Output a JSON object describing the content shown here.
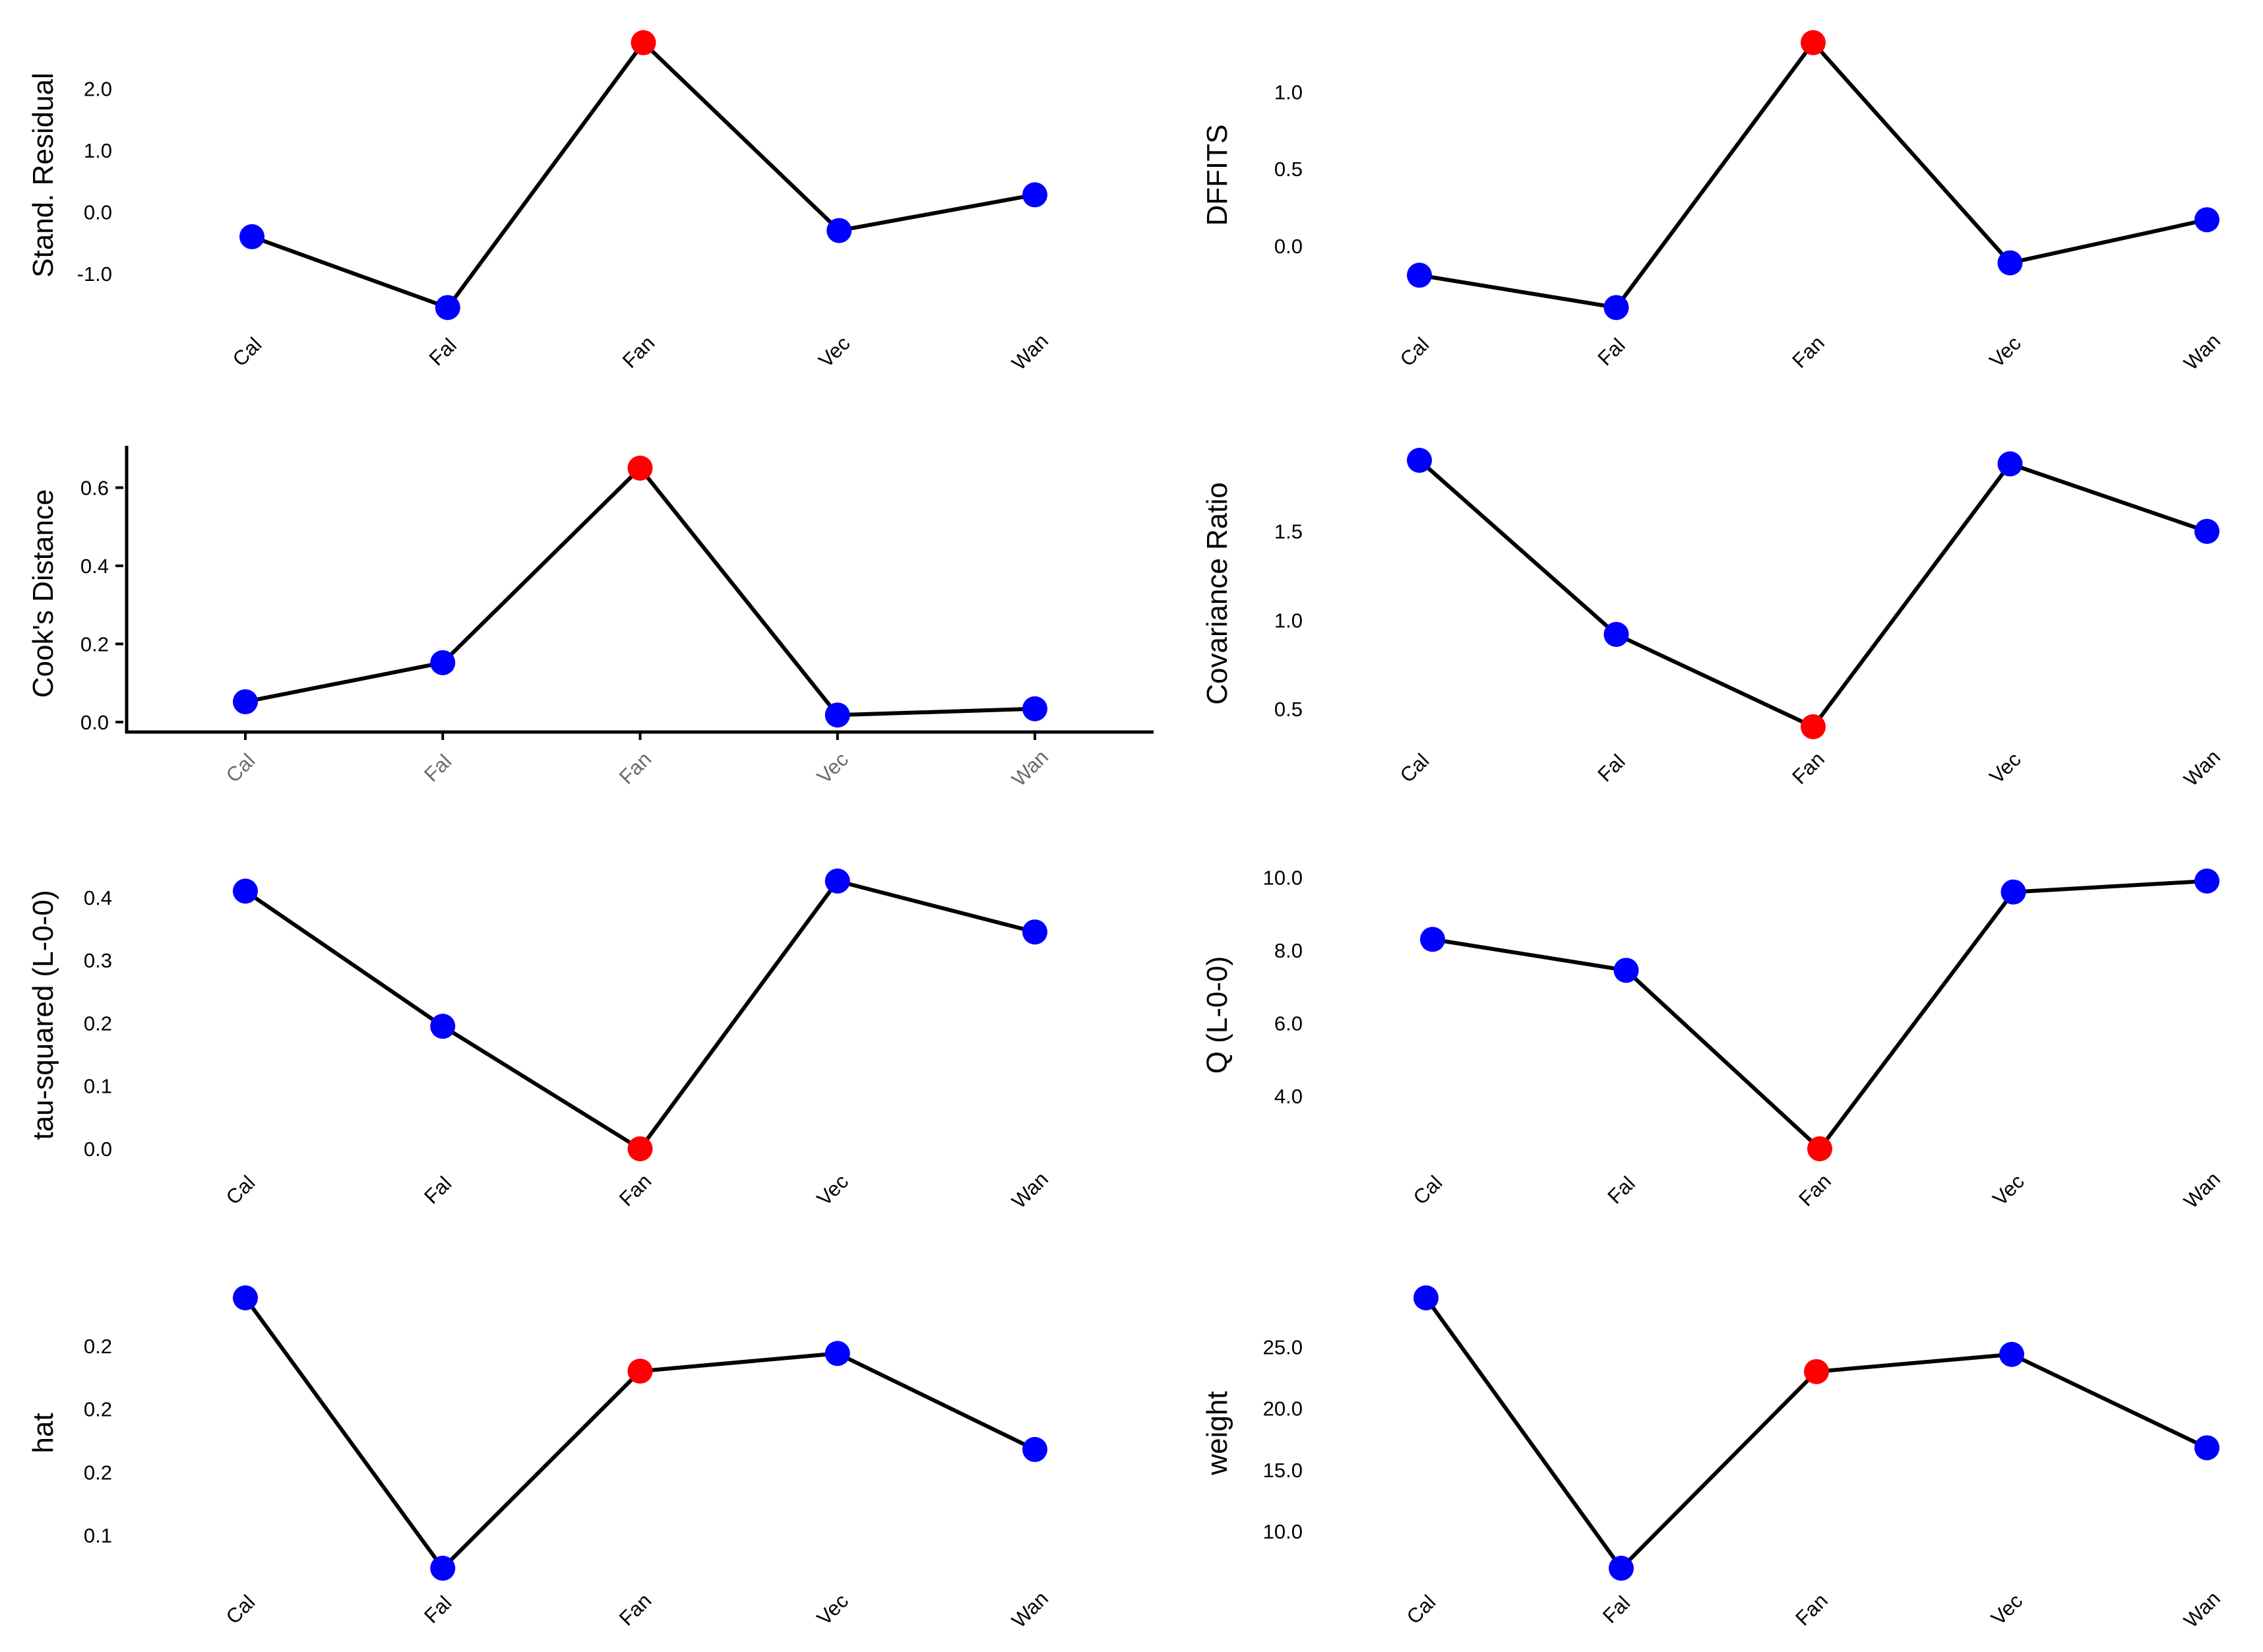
{
  "colors": {
    "normal_point": "#0000ff",
    "highlight_point": "#ff0000",
    "line": "#000000"
  },
  "chart_data": [
    {
      "type": "line",
      "ylabel": "Stand. Residual",
      "categories": [
        "Cal",
        "Fal",
        "Fan",
        "Vec",
        "Wan"
      ],
      "values": [
        -0.4,
        -1.55,
        2.75,
        -0.3,
        0.28
      ],
      "highlight": [
        false,
        false,
        true,
        false,
        false
      ],
      "yticks": [
        -1.0,
        0.0,
        1.0,
        2.0
      ],
      "ytick_labels": [
        "-1.0",
        "0.0",
        "1.0",
        "2.0"
      ],
      "ylim": [
        -1.6,
        2.8
      ],
      "axis_lines": false
    },
    {
      "type": "line",
      "ylabel": "DFFITS",
      "categories": [
        "Cal",
        "Fal",
        "Fan",
        "Vec",
        "Wan"
      ],
      "values": [
        -0.19,
        -0.4,
        1.32,
        -0.11,
        0.17
      ],
      "highlight": [
        false,
        false,
        true,
        false,
        false
      ],
      "yticks": [
        0.0,
        0.5,
        1.0
      ],
      "ytick_labels": [
        "0.0",
        "0.5",
        "1.0"
      ],
      "ylim": [
        -0.42,
        1.34
      ],
      "axis_lines": false
    },
    {
      "type": "line",
      "ylabel": "Cook's Distance",
      "categories": [
        "Cal",
        "Fal",
        "Fan",
        "Vec",
        "Wan"
      ],
      "values": [
        0.052,
        0.152,
        0.65,
        0.018,
        0.034
      ],
      "highlight": [
        false,
        false,
        true,
        false,
        false
      ],
      "yticks": [
        0.0,
        0.2,
        0.4,
        0.6
      ],
      "ytick_labels": [
        "0.0",
        "0.2",
        "0.4",
        "0.6"
      ],
      "ylim": [
        -0.012,
        0.67
      ],
      "axis_lines": true
    },
    {
      "type": "line",
      "ylabel": "Covariance Ratio",
      "categories": [
        "Cal",
        "Fal",
        "Fan",
        "Vec",
        "Wan"
      ],
      "values": [
        1.9,
        0.92,
        0.4,
        1.88,
        1.5
      ],
      "highlight": [
        false,
        false,
        true,
        false,
        false
      ],
      "yticks": [
        0.5,
        1.0,
        1.5
      ],
      "ytick_labels": [
        "0.5",
        "1.0",
        "1.5"
      ],
      "ylim": [
        0.4,
        1.9
      ],
      "axis_lines": false
    },
    {
      "type": "line",
      "ylabel": "tau-squared (L-0-0)",
      "categories": [
        "Cal",
        "Fal",
        "Fan",
        "Vec",
        "Wan"
      ],
      "values": [
        0.41,
        0.195,
        0.0,
        0.426,
        0.345
      ],
      "highlight": [
        false,
        false,
        true,
        false,
        false
      ],
      "yticks": [
        0.0,
        0.1,
        0.2,
        0.3,
        0.4
      ],
      "ytick_labels": [
        "0.0",
        "0.1",
        "0.2",
        "0.3",
        "0.4"
      ],
      "ylim": [
        0.0,
        0.426
      ],
      "axis_lines": false
    },
    {
      "type": "line",
      "ylabel": "Q (L-0-0)",
      "categories": [
        "Cal",
        "Fal",
        "Fan",
        "Vec",
        "Wan"
      ],
      "values": [
        8.3,
        7.45,
        2.55,
        9.6,
        9.9
      ],
      "highlight": [
        false,
        false,
        true,
        false,
        false
      ],
      "yticks": [
        4.0,
        6.0,
        8.0,
        10.0
      ],
      "ytick_labels": [
        "4.0",
        "6.0",
        "8.0",
        "10.0"
      ],
      "ylim": [
        2.55,
        9.9
      ],
      "axis_lines": false
    },
    {
      "type": "line",
      "ylabel": "hat",
      "categories": [
        "Cal",
        "Fal",
        "Fan",
        "Vec",
        "Wan"
      ],
      "values": [
        0.219,
        0.112,
        0.19,
        0.197,
        0.159
      ],
      "highlight": [
        false,
        false,
        true,
        false,
        false
      ],
      "yticks": [
        0.125,
        0.15,
        0.175,
        0.2
      ],
      "ytick_labels": [
        "0.1",
        "0.2",
        "0.2",
        "0.2"
      ],
      "ylim": [
        0.112,
        0.219
      ],
      "axis_lines": false
    },
    {
      "type": "line",
      "ylabel": "weight",
      "categories": [
        "Cal",
        "Fal",
        "Fan",
        "Vec",
        "Wan"
      ],
      "values": [
        29.0,
        7.0,
        23.0,
        24.4,
        16.8
      ],
      "highlight": [
        false,
        false,
        true,
        false,
        false
      ],
      "yticks": [
        10.0,
        15.0,
        20.0,
        25.0
      ],
      "ytick_labels": [
        "10.0",
        "15.0",
        "20.0",
        "25.0"
      ],
      "ylim": [
        7.0,
        29.0
      ],
      "axis_lines": false
    }
  ]
}
